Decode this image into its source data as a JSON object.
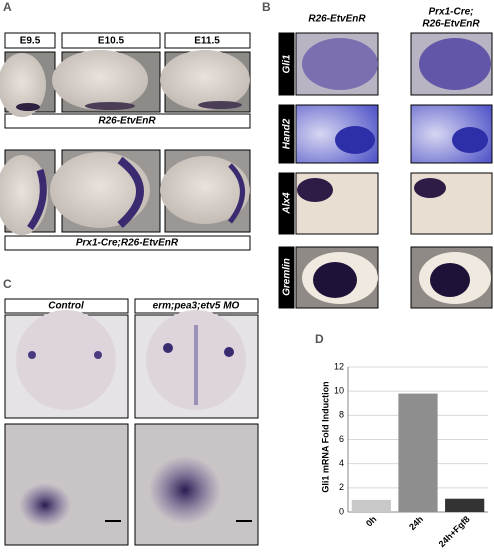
{
  "panel_a": {
    "label": "A",
    "stages": [
      "E9.5",
      "E10.5",
      "E11.5"
    ],
    "genotypes": [
      "R26-EtvEnR",
      "Prx1-Cre;R26-EtvEnR"
    ]
  },
  "panel_b": {
    "label": "B",
    "columns": [
      "R26-EtvEnR",
      "Prx1-Cre;",
      "R26-EtvEnR"
    ],
    "rows": [
      "Gli1",
      "Hand2",
      "Alx4",
      "Gremlin"
    ]
  },
  "panel_c": {
    "label": "C",
    "columns": [
      "Control",
      "erm;pea3;etv5 MO"
    ]
  },
  "panel_d": {
    "label": "D"
  },
  "chart_data": {
    "type": "bar",
    "ylabel": "Gli1 mRNA Fold Induction",
    "categories": [
      "0h",
      "24h",
      "24h+Fgf8"
    ],
    "values": [
      1,
      9.8,
      1.1
    ],
    "colors": [
      "#c8c8c8",
      "#8e8e8e",
      "#333333"
    ],
    "ylim": [
      0,
      12
    ],
    "yticks": [
      0,
      2,
      4,
      6,
      8,
      10,
      12
    ],
    "grid": true
  }
}
